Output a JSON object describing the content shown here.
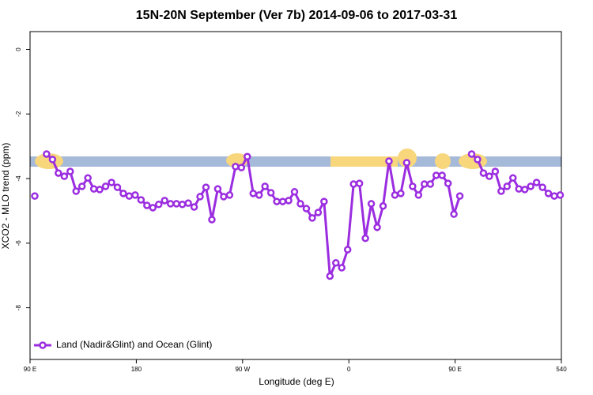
{
  "chart_data": {
    "type": "line",
    "title": "15N-20N September (Ver 7b)   2014-09-06 to 2017-03-31",
    "x_label": "Longitude (deg E)",
    "y_label": "XCO2 - MLO trend (ppm)",
    "xlim": [
      90,
      540
    ],
    "xticks": [
      {
        "value": 90,
        "label": "90 E"
      },
      180,
      {
        "value": 270,
        "label": "90 W"
      },
      {
        "value": 360,
        "label": "0"
      },
      {
        "value": 450,
        "label": "90 E"
      },
      540
    ],
    "ylim": [
      -9.6,
      0.55
    ],
    "yticks": [
      0,
      -2,
      -4,
      -6,
      -8
    ],
    "x": [
      94,
      99,
      104,
      109,
      114,
      119,
      124,
      129,
      134,
      139,
      144,
      149,
      154,
      159,
      164,
      169,
      174,
      179,
      184,
      189,
      194,
      199,
      204,
      209,
      214,
      219,
      224,
      229,
      234,
      239,
      244,
      249,
      254,
      259,
      264,
      269,
      274,
      279,
      284,
      289,
      294,
      299,
      304,
      309,
      314,
      319,
      324,
      329,
      334,
      339,
      344,
      349,
      354,
      359,
      364,
      369,
      374,
      379,
      384,
      389,
      394,
      399,
      404,
      409,
      414,
      419,
      424,
      429,
      434,
      439,
      444,
      449,
      454,
      459,
      464,
      469,
      474,
      479,
      484,
      489,
      494,
      499,
      504,
      509,
      514,
      519,
      524,
      529,
      534,
      539
    ],
    "series": [
      {
        "name": "Land (Nadir&Glint) and Ocean (Glint)",
        "color": "#9b2de0",
        "values": [
          -4.54,
          null,
          -3.24,
          -3.41,
          -3.83,
          -3.93,
          -3.78,
          -4.39,
          -4.24,
          -3.98,
          -4.32,
          -4.34,
          -4.24,
          -4.12,
          -4.27,
          -4.46,
          -4.54,
          -4.51,
          -4.66,
          -4.83,
          -4.9,
          -4.8,
          -4.68,
          -4.78,
          -4.78,
          -4.8,
          -4.76,
          -4.88,
          -4.56,
          -4.27,
          -5.27,
          -4.32,
          -4.56,
          -4.51,
          -3.63,
          -3.66,
          -3.32,
          -4.46,
          -4.51,
          -4.24,
          -4.44,
          -4.71,
          -4.71,
          -4.68,
          -4.41,
          -4.78,
          -4.93,
          -5.22,
          -5.05,
          -4.71,
          -7.02,
          -6.61,
          -6.76,
          -6.2,
          -4.17,
          -4.15,
          -5.85,
          -4.78,
          -5.51,
          -4.85,
          -3.46,
          -4.51,
          -4.46,
          -3.51,
          -4.24,
          -4.51,
          -4.17,
          -4.17,
          -3.9,
          -3.9,
          -4.15,
          -5.1,
          -4.54,
          null,
          -3.24,
          -3.41,
          -3.83,
          -3.93,
          -3.78,
          -4.39,
          -4.24,
          -3.98,
          -4.32,
          -4.34,
          -4.24,
          -4.12,
          -4.27,
          -4.46,
          -4.54,
          -4.51
        ]
      }
    ],
    "legend": "bottom-left"
  }
}
